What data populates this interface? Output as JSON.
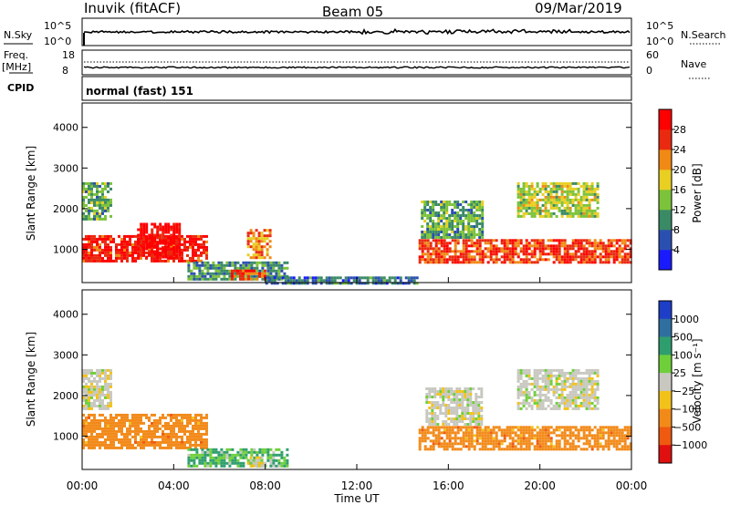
{
  "header": {
    "station": "Inuvik (fitACF)",
    "beam": "Beam 05",
    "date": "09/Mar/2019"
  },
  "strip1": {
    "left_label": "N.Sky",
    "left_ticks": [
      "10^5",
      "10^0"
    ],
    "right_ticks": [
      "10^5",
      "10^0"
    ],
    "right_label": "N.Search"
  },
  "strip2": {
    "left_label_1": "Freq.",
    "left_label_2": "[MHz]",
    "left_ticks": [
      "18",
      "8"
    ],
    "right_ticks": [
      "60",
      "0"
    ],
    "right_label": "Nave"
  },
  "cpid": {
    "label": "CPID",
    "mode": "normal (fast) 151"
  },
  "x_axis": {
    "tick_labels": [
      "00:00",
      "04:00",
      "08:00",
      "12:00",
      "16:00",
      "20:00",
      "00:00"
    ],
    "label": "Time UT"
  },
  "y_axis": {
    "label": "Slant Range [km]",
    "tick_labels": [
      "1000",
      "2000",
      "3000",
      "4000"
    ]
  },
  "colorbar_power": {
    "title": "Power [dB]",
    "labels": [
      "4",
      "8",
      "12",
      "16",
      "20",
      "24",
      "28"
    ],
    "colors": [
      "#1a1aff",
      "#2b4fb0",
      "#3a8a66",
      "#7cc23a",
      "#e8cf22",
      "#f08a14",
      "#ea2a10",
      "#ff0000"
    ]
  },
  "colorbar_velocity": {
    "title": "Velocity [m s⁻¹]",
    "labels": [
      "1000",
      "500",
      "100",
      "25",
      "−25",
      "−100",
      "−500",
      "−1000"
    ],
    "colors": [
      "#1e3ec8",
      "#2f6fa0",
      "#2f9e6e",
      "#6fcf3a",
      "#c8c8c0",
      "#f2c21a",
      "#f28a1a",
      "#f05a10",
      "#e01010"
    ]
  },
  "chart_data": [
    {
      "type": "heatmap",
      "title": "",
      "xlabel": "Time UT",
      "ylabel": "Slant Range [km]",
      "xlim": [
        "00:00",
        "24:00"
      ],
      "ylim": [
        180,
        4600
      ],
      "colorbar": {
        "label": "Power [dB]",
        "range": [
          0,
          30
        ]
      },
      "regions": [
        {
          "t_start": 0.0,
          "t_end": 5.4,
          "range_start": 700,
          "range_end": 1350,
          "value": 28
        },
        {
          "t_start": 2.4,
          "t_end": 4.2,
          "range_start": 800,
          "range_end": 1650,
          "value": 30
        },
        {
          "t_start": 0.0,
          "t_end": 1.2,
          "range_start": 1750,
          "range_end": 2650,
          "value": 12
        },
        {
          "t_start": 4.6,
          "t_end": 9.0,
          "range_start": 250,
          "range_end": 700,
          "value": 10
        },
        {
          "t_start": 6.5,
          "t_end": 8.0,
          "range_start": 250,
          "range_end": 500,
          "value": 26
        },
        {
          "t_start": 7.2,
          "t_end": 8.2,
          "range_start": 800,
          "range_end": 1500,
          "value": 22
        },
        {
          "t_start": 8.0,
          "t_end": 14.6,
          "range_start": 190,
          "range_end": 330,
          "value": 8
        },
        {
          "t_start": 14.7,
          "t_end": 24.0,
          "range_start": 650,
          "range_end": 1250,
          "value": 26
        },
        {
          "t_start": 14.8,
          "t_end": 17.5,
          "range_start": 1300,
          "range_end": 2200,
          "value": 12
        },
        {
          "t_start": 19.0,
          "t_end": 22.5,
          "range_start": 1800,
          "range_end": 2650,
          "value": 16
        }
      ]
    },
    {
      "type": "heatmap",
      "title": "",
      "xlabel": "Time UT",
      "ylabel": "Slant Range [km]",
      "xlim": [
        "00:00",
        "24:00"
      ],
      "ylim": [
        180,
        4600
      ],
      "colorbar": {
        "label": "Velocity [m s⁻¹]",
        "range": [
          -1000,
          1000
        ]
      },
      "regions": [
        {
          "t_start": 0.0,
          "t_end": 5.4,
          "range_start": 700,
          "range_end": 1550,
          "value": -300
        },
        {
          "t_start": 0.0,
          "t_end": 1.2,
          "range_start": 1700,
          "range_end": 2650,
          "value": 0
        },
        {
          "t_start": 4.6,
          "t_end": 9.0,
          "range_start": 250,
          "range_end": 700,
          "value": 100
        },
        {
          "t_start": 7.2,
          "t_end": 8.0,
          "range_start": 250,
          "range_end": 500,
          "value": -10
        },
        {
          "t_start": 14.7,
          "t_end": 24.0,
          "range_start": 650,
          "range_end": 1250,
          "value": -300
        },
        {
          "t_start": 15.0,
          "t_end": 17.5,
          "range_start": 1300,
          "range_end": 2200,
          "value": 0
        },
        {
          "t_start": 19.0,
          "t_end": 22.5,
          "range_start": 1700,
          "range_end": 2650,
          "value": 0
        }
      ]
    }
  ]
}
